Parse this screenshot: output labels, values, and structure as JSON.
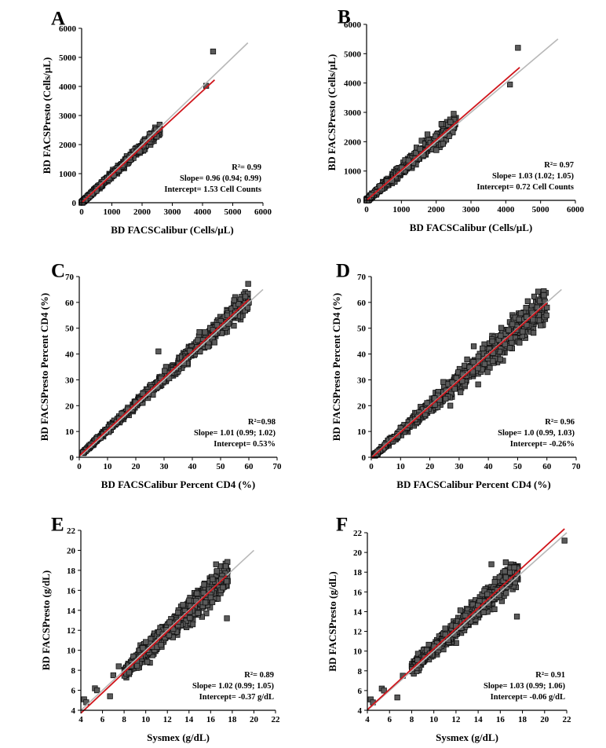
{
  "figure_title": "",
  "chart_data": [
    {
      "panel": "A",
      "type": "scatter",
      "xlabel": "BD FACSCalibur (Cells/µL)",
      "ylabel": "BD FACSPresto (Cells/µL)",
      "xlim": [
        0,
        6000
      ],
      "ylim": [
        0,
        6000
      ],
      "xticks": [
        0,
        1000,
        2000,
        3000,
        4000,
        5000,
        6000
      ],
      "yticks": [
        0,
        1000,
        2000,
        3000,
        4000,
        5000,
        6000
      ],
      "identity_line": [
        0,
        5500
      ],
      "regression": {
        "slope": 0.96,
        "intercept": 1.53,
        "x_range": [
          0,
          4400
        ]
      },
      "stats": [
        "R²= 0.99",
        "Slope= 0.96 (0.94; 0.99)",
        "Intercept= 1.53 Cell Counts"
      ],
      "points": {
        "n": 700,
        "x_range": [
          0,
          2600
        ],
        "spread": 0.06,
        "skew": 1.7,
        "extra": [
          [
            4350,
            5200
          ],
          [
            4120,
            4020
          ]
        ]
      }
    },
    {
      "panel": "B",
      "type": "scatter",
      "xlabel": "BD FACSCalibur (Cells/µL)",
      "ylabel": "BD FACSPresto (Cells/µL)",
      "xlim": [
        0,
        6000
      ],
      "ylim": [
        0,
        6000
      ],
      "xticks": [
        0,
        1000,
        2000,
        3000,
        4000,
        5000,
        6000
      ],
      "yticks": [
        0,
        1000,
        2000,
        3000,
        4000,
        5000,
        6000
      ],
      "identity_line": [
        0,
        5500
      ],
      "regression": {
        "slope": 1.03,
        "intercept": 0.72,
        "x_range": [
          0,
          4400
        ]
      },
      "stats": [
        "R²= 0.97",
        "Slope= 1.03 (1.02; 1.05)",
        "Intercept= 0.72 Cell Counts"
      ],
      "points": {
        "n": 700,
        "x_range": [
          0,
          2600
        ],
        "spread": 0.12,
        "skew": 1.7,
        "extra": [
          [
            4350,
            5200
          ],
          [
            4120,
            3950
          ],
          [
            2150,
            2600
          ],
          [
            1750,
            2250
          ]
        ]
      }
    },
    {
      "panel": "C",
      "type": "scatter",
      "xlabel": "BD FACSCalibur Percent CD4 (%)",
      "ylabel": "BD FACSPresto Percent CD4 (%)",
      "xlim": [
        0,
        70
      ],
      "ylim": [
        0,
        70
      ],
      "xticks": [
        0,
        10,
        20,
        30,
        40,
        50,
        60,
        70
      ],
      "yticks": [
        0,
        10,
        20,
        30,
        40,
        50,
        60,
        70
      ],
      "identity_line": [
        0,
        65
      ],
      "regression": {
        "slope": 1.01,
        "intercept": 0.53,
        "x_range": [
          0,
          60
        ]
      },
      "stats": [
        "R²=0.98",
        "Slope= 1.01 (0.99; 1.02)",
        "Intercept= 0.53%"
      ],
      "points": {
        "n": 900,
        "x_range": [
          1,
          60
        ],
        "spread": 0.065,
        "skew": 1.0,
        "extra": [
          [
            28,
            41
          ],
          [
            60,
            60
          ],
          [
            55,
            55
          ]
        ]
      }
    },
    {
      "panel": "D",
      "type": "scatter",
      "xlabel": "BD FACSCalibur Percent CD4 (%)",
      "ylabel": "BD FACSPresto Percent CD4 (%)",
      "xlim": [
        0,
        70
      ],
      "ylim": [
        0,
        70
      ],
      "xticks": [
        0,
        10,
        20,
        30,
        40,
        50,
        60,
        70
      ],
      "yticks": [
        0,
        10,
        20,
        30,
        40,
        50,
        60,
        70
      ],
      "identity_line": [
        0,
        65
      ],
      "regression": {
        "slope": 1.0,
        "intercept": -0.26,
        "x_range": [
          0,
          60
        ]
      },
      "stats": [
        "R²= 0.96",
        "Slope= 1.0 (0.99, 1.03)",
        "Intercept=  -0.26%"
      ],
      "points": {
        "n": 900,
        "x_range": [
          1,
          60
        ],
        "spread": 0.1,
        "skew": 1.0,
        "extra": [
          [
            35,
            43
          ],
          [
            60,
            58
          ],
          [
            27,
            20
          ],
          [
            55,
            56
          ]
        ]
      }
    },
    {
      "panel": "E",
      "type": "scatter",
      "xlabel": "Sysmex (g/dL)",
      "ylabel": "BD FACSPresto (g/dL)",
      "xlim": [
        4,
        22
      ],
      "ylim": [
        4,
        22
      ],
      "xticks": [
        4,
        6,
        8,
        10,
        12,
        14,
        16,
        18,
        20,
        22
      ],
      "yticks": [
        4,
        6,
        8,
        10,
        12,
        14,
        16,
        18,
        20,
        22
      ],
      "identity_line": [
        4,
        20
      ],
      "regression": {
        "slope": 1.02,
        "intercept": -0.37,
        "x_range": [
          4,
          17.5
        ]
      },
      "stats": [
        "R²= 0.89",
        "Slope= 1.02 (0.99; 1.05)",
        "Intercept= -0.37 g/dL"
      ],
      "points": {
        "n": 900,
        "x_range": [
          8,
          17.6
        ],
        "spread": 0.07,
        "skew": 1.0,
        "extra": [
          [
            4.3,
            5.1
          ],
          [
            4.5,
            4.8
          ],
          [
            5.3,
            6.2
          ],
          [
            5.5,
            6.0
          ],
          [
            6.7,
            5.4
          ],
          [
            16.5,
            18.6
          ],
          [
            17.5,
            13.2
          ],
          [
            7.0,
            7.5
          ],
          [
            7.5,
            8.4
          ]
        ]
      }
    },
    {
      "panel": "F",
      "type": "scatter",
      "xlabel": "Sysmex (g/dL)",
      "ylabel": "BD FACSPresto (g/dL)",
      "xlim": [
        4,
        22
      ],
      "ylim": [
        4,
        22
      ],
      "xticks": [
        4,
        6,
        8,
        10,
        12,
        14,
        16,
        18,
        20,
        22
      ],
      "yticks": [
        4,
        6,
        8,
        10,
        12,
        14,
        16,
        18,
        20,
        22
      ],
      "identity_line": [
        4,
        22
      ],
      "regression": {
        "slope": 1.03,
        "intercept": -0.06,
        "x_range": [
          4,
          21.8
        ]
      },
      "stats": [
        "R²= 0.91",
        "Slope= 1.03 (0.99; 1.06)",
        "Intercept= -0.06 g/dL"
      ],
      "points": {
        "n": 900,
        "x_range": [
          8,
          17.6
        ],
        "spread": 0.06,
        "skew": 1.0,
        "extra": [
          [
            4.3,
            5.1
          ],
          [
            4.5,
            4.8
          ],
          [
            5.3,
            6.2
          ],
          [
            5.5,
            6.0
          ],
          [
            6.7,
            5.3
          ],
          [
            15.2,
            18.8
          ],
          [
            16.5,
            19.0
          ],
          [
            21.8,
            21.2
          ],
          [
            17.5,
            13.5
          ],
          [
            7.2,
            7.5
          ]
        ]
      }
    }
  ]
}
